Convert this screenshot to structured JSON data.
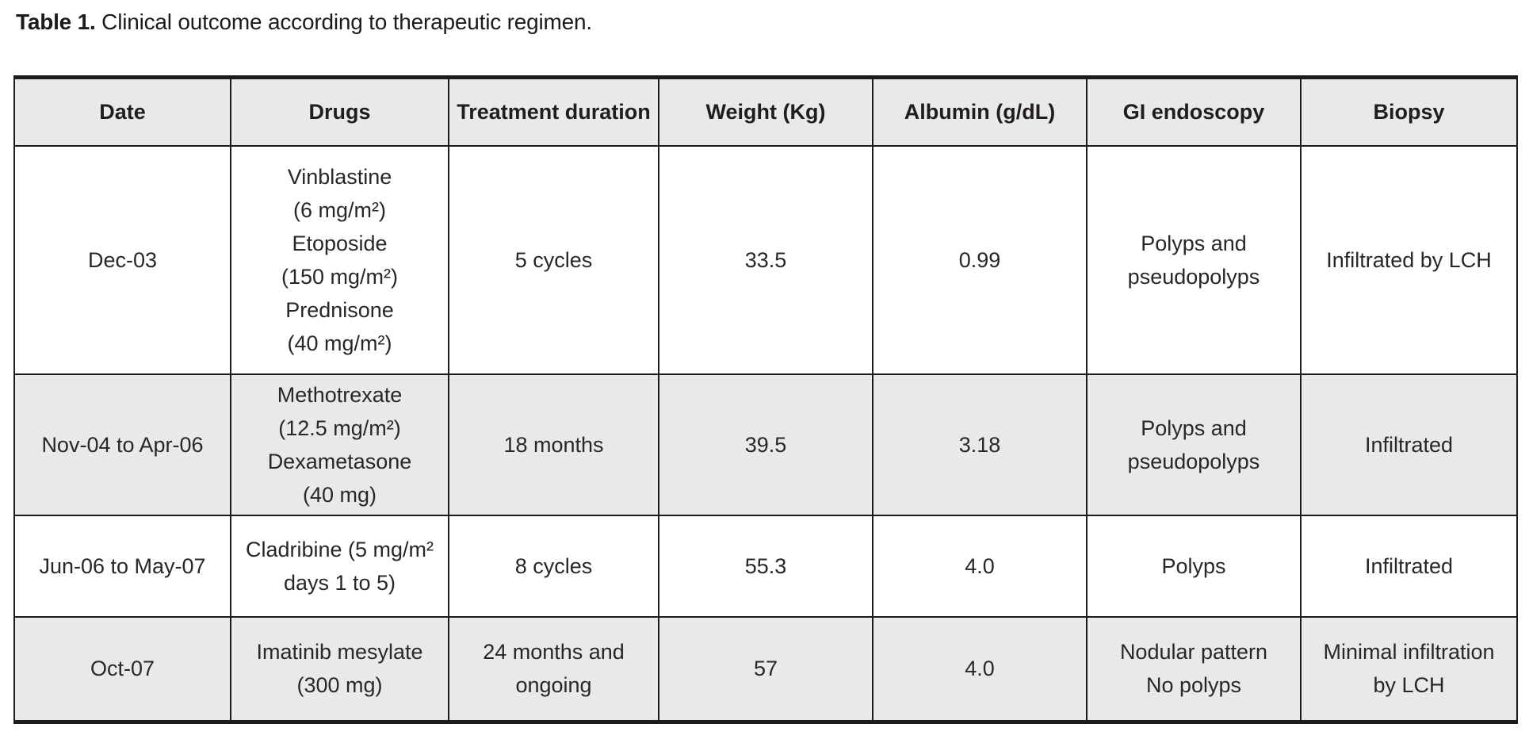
{
  "title": {
    "prefix": "Table 1.",
    "text": " Clinical outcome according to therapeutic regimen."
  },
  "colors": {
    "row_shade": "#e9e9eb",
    "border": "#1b1b1b",
    "text": "#2a2627",
    "page_background": "#ffffff"
  },
  "table": {
    "columns": [
      "Date",
      "Drugs",
      "Treatment duration",
      "Weight (Kg)",
      "Albumin (g/dL)",
      "GI endoscopy",
      "Biopsy"
    ],
    "rows": [
      {
        "cells": [
          "Dec-03",
          "Vinblastine\n(6 mg/m²)\nEtoposide\n(150 mg/m²)\nPrednisone\n(40 mg/m²)",
          "5 cycles",
          "33.5",
          "0.99",
          "Polyps and\npseudopolyps",
          "Infiltrated by LCH"
        ]
      },
      {
        "cells": [
          "Nov-04 to Apr-06",
          "Methotrexate\n(12.5 mg/m²)\nDexametasone\n(40 mg)",
          "18 months",
          "39.5",
          "3.18",
          "Polyps and\npseudopolyps",
          "Infiltrated"
        ]
      },
      {
        "cells": [
          "Jun-06 to May-07",
          "Cladribine (5 mg/m²\ndays 1 to 5)",
          "8 cycles",
          "55.3",
          "4.0",
          "Polyps",
          "Infiltrated"
        ]
      },
      {
        "cells": [
          "Oct-07",
          "Imatinib mesylate\n(300 mg)",
          "24 months and\nongoing",
          "57",
          "4.0",
          "Nodular pattern\nNo polyps",
          "Minimal infiltration\nby LCH"
        ]
      }
    ]
  }
}
